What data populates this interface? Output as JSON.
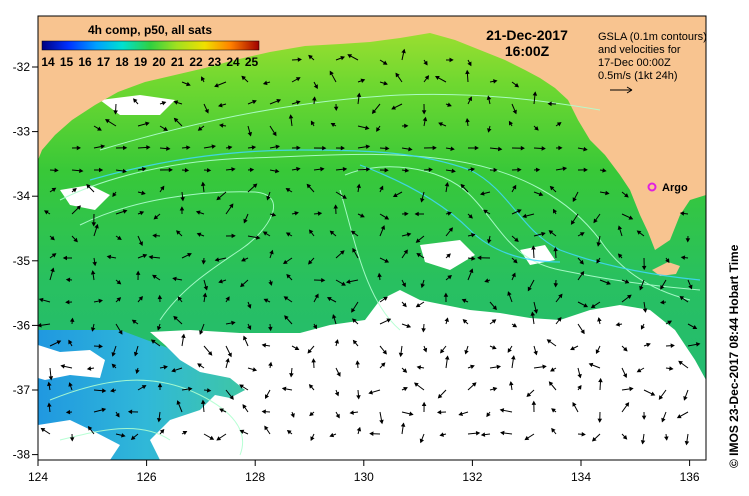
{
  "colorbar": {
    "title": "4h comp, p50, all sats",
    "ticks": [
      "14",
      "15",
      "16",
      "17",
      "18",
      "19",
      "20",
      "21",
      "22",
      "23",
      "24",
      "25"
    ]
  },
  "datetime": {
    "date": "21-Dec-2017",
    "time": "16:00Z"
  },
  "gsla_note": {
    "lines": [
      "GSLA (0.1m contours)",
      "and velocities for",
      "17-Dec 00:00Z",
      "0.5m/s (1kt 24h)"
    ]
  },
  "argo_label": "Argo",
  "credit": "© IMOS 23-Dec-2017 08:44 Hobart Time",
  "axes": {
    "x_ticks": [
      "124",
      "126",
      "128",
      "130",
      "132",
      "134",
      "136"
    ],
    "y_ticks": [
      "-32",
      "-33",
      "-34",
      "-35",
      "-36",
      "-37",
      "-38"
    ]
  },
  "colors": {
    "land": "#f8c490",
    "sea_dominant": "#3cc83c",
    "argo_marker": "#e020e0",
    "contour": "#b0ffd0",
    "no_data": "#ffffff"
  }
}
